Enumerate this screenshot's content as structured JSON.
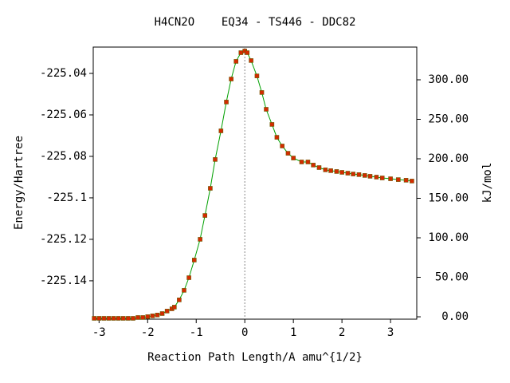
{
  "chart_data": {
    "type": "line",
    "title": "H4CN2O    EQ34 - TS446 - DDC82",
    "xlabel": "Reaction Path Length/A amu^{1/2}",
    "ylabel": "Energy/Hartree",
    "y2label": "kJ/mol",
    "xlim": [
      -3.12,
      3.54
    ],
    "ylim": [
      -225.1585,
      -225.0273
    ],
    "y2lim": [
      -3,
      341.4
    ],
    "xticks": [
      -3,
      -2,
      -1,
      0,
      1,
      2,
      3
    ],
    "yticks": [
      -225.14,
      -225.12,
      -225.1,
      -225.08,
      -225.06,
      -225.04
    ],
    "y2ticks": [
      {
        "value": 0,
        "label": "0.00"
      },
      {
        "value": 50,
        "label": "50.00"
      },
      {
        "value": 100,
        "label": "100.00"
      },
      {
        "value": 150,
        "label": "150.00"
      },
      {
        "value": 200,
        "label": "200.00"
      },
      {
        "value": 250,
        "label": "250.00"
      },
      {
        "value": 300,
        "label": "300.00"
      }
    ],
    "vline": 0,
    "series": [
      {
        "color": "#00a000",
        "marker_color": "#d42a00",
        "x": [
          -3.1,
          -3.0,
          -2.9,
          -2.8,
          -2.7,
          -2.6,
          -2.5,
          -2.4,
          -2.3,
          -2.2,
          -2.1,
          -2.0,
          -1.9,
          -1.8,
          -1.7,
          -1.6,
          -1.5,
          -1.45,
          -1.35,
          -1.25,
          -1.15,
          -1.04,
          -0.92,
          -0.82,
          -0.71,
          -0.61,
          -0.49,
          -0.38,
          -0.28,
          -0.18,
          -0.08,
          0,
          0.05,
          0.13,
          0.25,
          0.35,
          0.44,
          0.56,
          0.66,
          0.77,
          0.89,
          1.0,
          1.17,
          1.3,
          1.41,
          1.53,
          1.66,
          1.77,
          1.89,
          2.0,
          2.12,
          2.23,
          2.35,
          2.47,
          2.58,
          2.71,
          2.83,
          3.0,
          3.16,
          3.32,
          3.44
        ],
        "values": [
          -225.1581,
          -225.1581,
          -225.1581,
          -225.1581,
          -225.1581,
          -225.1581,
          -225.1581,
          -225.1581,
          -225.1581,
          -225.1577,
          -225.1577,
          -225.1573,
          -225.1569,
          -225.1565,
          -225.1558,
          -225.1546,
          -225.1535,
          -225.1527,
          -225.1492,
          -225.1446,
          -225.1385,
          -225.13,
          -225.12,
          -225.1085,
          -225.0954,
          -225.0815,
          -225.0677,
          -225.0538,
          -225.0427,
          -225.0342,
          -225.03,
          -225.0292,
          -225.03,
          -225.0338,
          -225.0412,
          -225.0492,
          -225.0573,
          -225.0646,
          -225.0708,
          -225.075,
          -225.0785,
          -225.0808,
          -225.0827,
          -225.0827,
          -225.0842,
          -225.0854,
          -225.0865,
          -225.0869,
          -225.0873,
          -225.0877,
          -225.0881,
          -225.0885,
          -225.0888,
          -225.0892,
          -225.0896,
          -225.09,
          -225.0904,
          -225.0908,
          -225.0912,
          -225.0915,
          -225.0919
        ]
      }
    ]
  }
}
